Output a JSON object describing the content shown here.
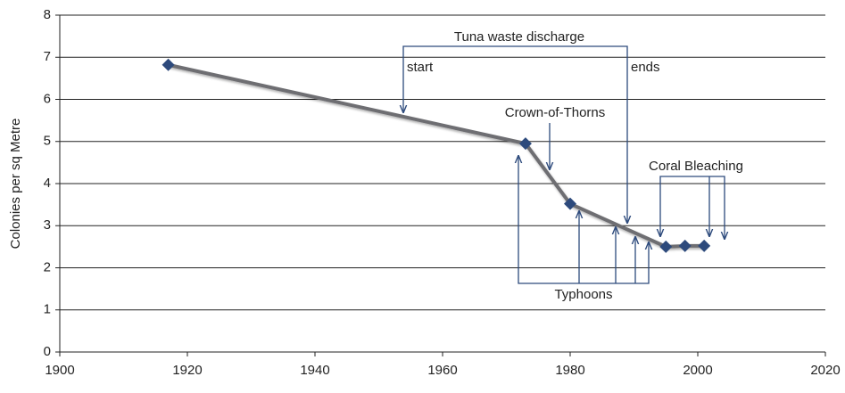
{
  "chart_data": {
    "type": "line",
    "ylabel": "Colonies per sq Metre",
    "x": [
      1917,
      1973,
      1980,
      1995,
      1998,
      2001
    ],
    "series": [
      {
        "name": "Colonies",
        "color": "#6e6e72",
        "marker_color": "#2d4a7c",
        "values": [
          6.82,
          4.95,
          3.52,
          2.5,
          2.52,
          2.52
        ]
      }
    ],
    "xlim": [
      1900,
      2020
    ],
    "xticks": [
      1900,
      1920,
      1940,
      1960,
      1980,
      2000,
      2020
    ],
    "ylim": [
      0,
      8
    ],
    "yticks": [
      0,
      1,
      2,
      3,
      4,
      5,
      6,
      7,
      8
    ],
    "grid": true,
    "annotations": [
      "Tuna waste discharge",
      "start",
      "ends",
      "Crown-of-Thorns",
      "Coral Bleaching",
      "Typhoons"
    ]
  }
}
